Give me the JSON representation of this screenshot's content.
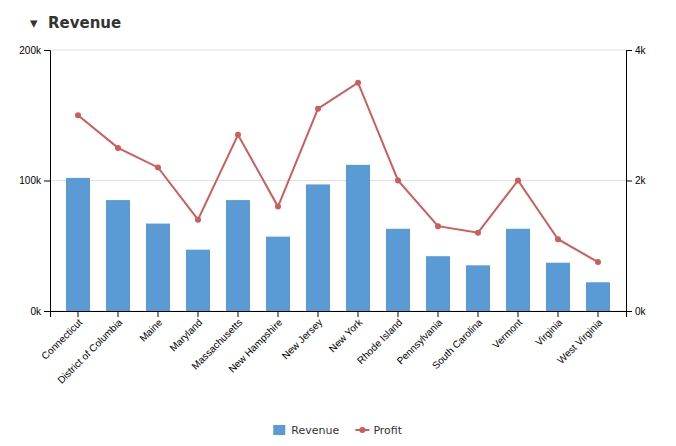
{
  "chart_data": {
    "type": "bar",
    "title": "▾  Revenue",
    "categories": [
      "Connecticut",
      "District of Columbia",
      "Maine",
      "Maryland",
      "Massachusetts",
      "New Hampshire",
      "New Jersey",
      "New York",
      "Rhode Island",
      "Pennsylvania",
      "South Carolina",
      "Vermont",
      "Virginia",
      "West Virginia"
    ],
    "series": [
      {
        "name": "Revenue",
        "type": "bar",
        "color": "#5b9bd5",
        "values": [
          102000,
          85000,
          67000,
          47000,
          85000,
          57000,
          97000,
          112000,
          63000,
          42000,
          35000,
          63000,
          37000,
          22000
        ]
      },
      {
        "name": "Profit",
        "type": "line",
        "color": "#cd5c5c",
        "marker": "circle",
        "axis": "y2",
        "values": [
          3000,
          2500,
          2200,
          1400,
          2700,
          1600,
          3100,
          3500,
          2000,
          1300,
          1200,
          2000,
          1100,
          750
        ]
      }
    ],
    "ylim": [
      0,
      200000
    ],
    "yticks": [
      {
        "value": 0,
        "label": "0k"
      },
      {
        "value": 100000,
        "label": "100k"
      },
      {
        "value": 200000,
        "label": "200k"
      }
    ],
    "y2lim": [
      0,
      4000
    ],
    "y2ticks": [
      {
        "value": 0,
        "label": "0k"
      },
      {
        "value": 2000,
        "label": "2k"
      },
      {
        "value": 4000,
        "label": "4k"
      }
    ],
    "grid": true,
    "legend": "bottom"
  }
}
